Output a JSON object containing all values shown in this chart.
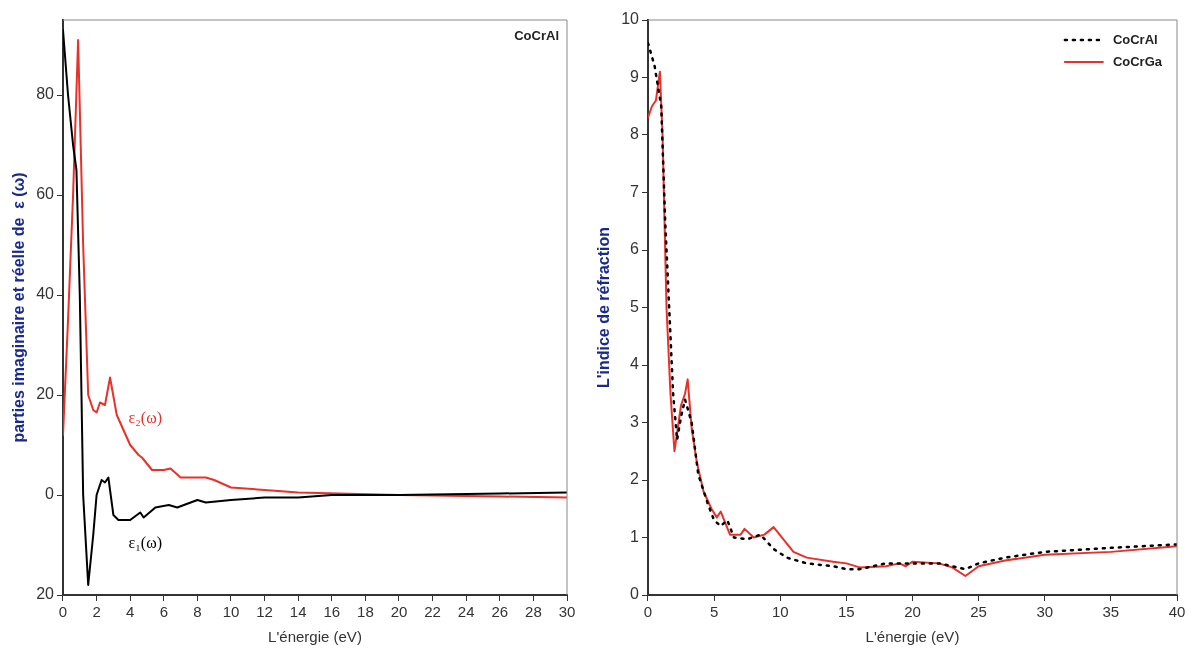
{
  "chart_data": [
    {
      "type": "line",
      "xlabel": "L'énergie (eV)",
      "ylabel": "parties imaginaire et réelle de  ε (ω)",
      "xlim": [
        0,
        30
      ],
      "xticks": [
        0,
        2,
        4,
        6,
        8,
        10,
        12,
        14,
        16,
        18,
        20,
        22,
        24,
        26,
        28,
        30
      ],
      "ylim": [
        -20,
        95
      ],
      "yticks": [
        {
          "value": -20,
          "label": "20"
        },
        0,
        20,
        40,
        60,
        80
      ],
      "grid": false,
      "legend": false,
      "marker": "none",
      "annotations": [
        "CoCrAl"
      ],
      "series": [
        {
          "name": "ε₁(ω)",
          "color": "#000000",
          "x": [
            0,
            0.3,
            0.6,
            0.8,
            1.0,
            1.2,
            1.5,
            1.8,
            2.0,
            2.3,
            2.5,
            2.7,
            3.0,
            3.3,
            4,
            4.6,
            4.8,
            5.5,
            6.3,
            6.8,
            8,
            8.5,
            10,
            12,
            14,
            16,
            20,
            26,
            30
          ],
          "values": [
            93,
            80,
            70,
            65,
            40,
            0,
            -18,
            -8,
            0,
            3,
            2.5,
            3.5,
            -4,
            -5,
            -5,
            -3.5,
            -4.5,
            -2.5,
            -2,
            -2.5,
            -1,
            -1.5,
            -1,
            -0.5,
            -0.5,
            0,
            0,
            0.3,
            0.5
          ]
        },
        {
          "name": "ε₂(ω)",
          "color": "#e8312b",
          "x": [
            0,
            0.3,
            0.6,
            0.9,
            1.2,
            1.5,
            1.8,
            2.0,
            2.2,
            2.5,
            2.8,
            3.2,
            4,
            4.5,
            4.7,
            5.3,
            6,
            6.4,
            7,
            8.5,
            9,
            10,
            12,
            14,
            20,
            26,
            30
          ],
          "values": [
            12,
            35,
            60,
            91,
            50,
            20,
            17,
            16.5,
            18.5,
            18,
            23.5,
            16,
            10,
            8,
            7.5,
            5,
            5,
            5.3,
            3.5,
            3.5,
            3,
            1.5,
            1,
            0.5,
            0,
            -0.3,
            -0.5
          ]
        }
      ]
    },
    {
      "type": "line",
      "xlabel": "L'énergie (eV)",
      "ylabel": "L'indice de réfraction",
      "xlim": [
        0,
        40
      ],
      "xticks": [
        0,
        5,
        10,
        15,
        20,
        25,
        30,
        35,
        40
      ],
      "ylim": [
        0,
        10
      ],
      "yticks": [
        0,
        1,
        2,
        3,
        4,
        5,
        6,
        7,
        8,
        9,
        10
      ],
      "grid": false,
      "legend": "top right",
      "marker": "none",
      "series": [
        {
          "name": "CoCrAl",
          "color": "#000000",
          "line_style": "dotted",
          "x": [
            0,
            0.5,
            1,
            1.3,
            1.6,
            1.9,
            2.2,
            2.5,
            2.8,
            3.3,
            3.8,
            4.5,
            5,
            5.5,
            6,
            6.5,
            7.5,
            8.5,
            9.5,
            10.5,
            12,
            14,
            15,
            16,
            17,
            18,
            20,
            22,
            23,
            24,
            25,
            27,
            30,
            35,
            40
          ],
          "values": [
            9.6,
            9.2,
            8.5,
            6.5,
            5,
            3.5,
            2.7,
            3.1,
            3.4,
            3,
            2.1,
            1.6,
            1.3,
            1.2,
            1.3,
            1.0,
            0.97,
            1.05,
            0.8,
            0.65,
            0.55,
            0.5,
            0.45,
            0.45,
            0.5,
            0.55,
            0.55,
            0.55,
            0.5,
            0.45,
            0.55,
            0.65,
            0.75,
            0.82,
            0.88
          ]
        },
        {
          "name": "CoCrGa",
          "color": "#e8312b",
          "line_style": "solid",
          "x": [
            0,
            0.3,
            0.6,
            0.9,
            1.1,
            1.4,
            1.7,
            2.0,
            2.5,
            2.8,
            3.0,
            3.3,
            3.7,
            4.2,
            4.8,
            5.2,
            5.5,
            6.2,
            7,
            7.3,
            8,
            8.8,
            9.5,
            10.3,
            11,
            12,
            14,
            15,
            16,
            18,
            19,
            19.5,
            20,
            22,
            23,
            24,
            25,
            27,
            30,
            35,
            40
          ],
          "values": [
            8.3,
            8.5,
            8.6,
            9.1,
            8,
            5,
            3.5,
            2.5,
            3.3,
            3.5,
            3.75,
            2.9,
            2.3,
            1.8,
            1.5,
            1.35,
            1.45,
            1.05,
            1.05,
            1.15,
            1.0,
            1.05,
            1.18,
            0.95,
            0.75,
            0.65,
            0.58,
            0.55,
            0.48,
            0.5,
            0.55,
            0.5,
            0.58,
            0.55,
            0.48,
            0.33,
            0.5,
            0.6,
            0.7,
            0.75,
            0.85
          ]
        }
      ]
    }
  ]
}
